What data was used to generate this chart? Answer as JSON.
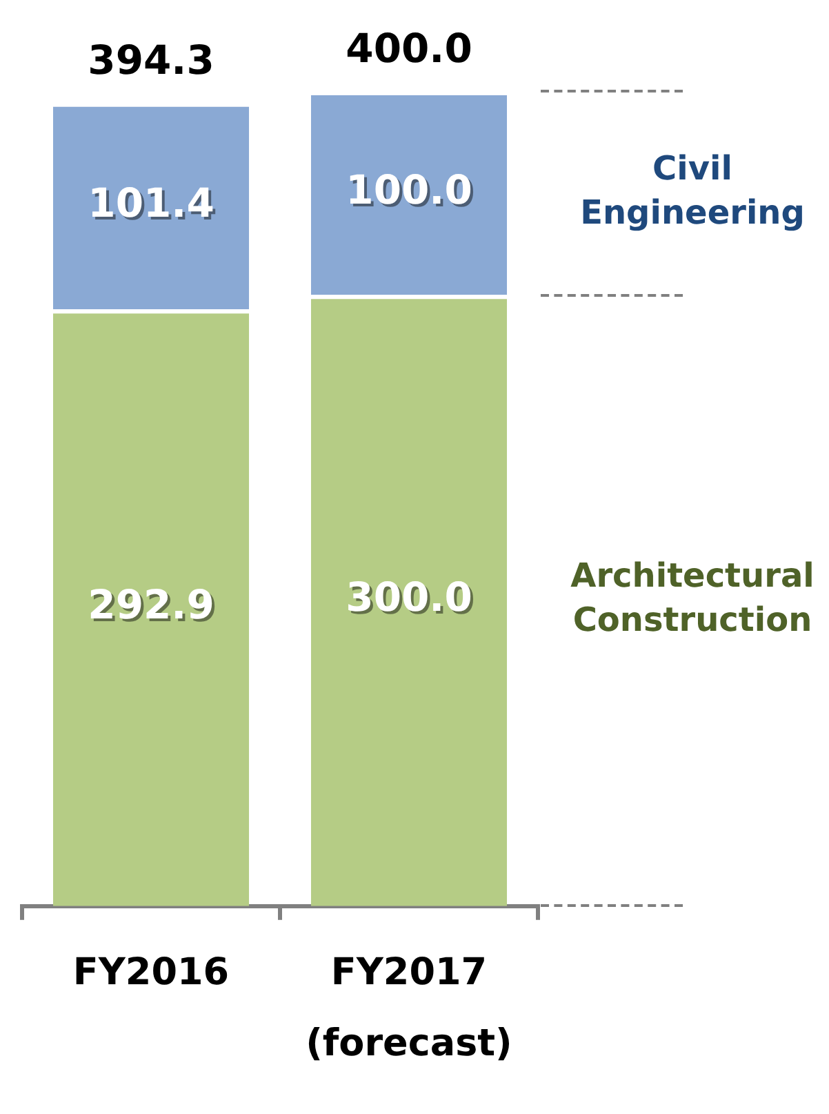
{
  "chart_data": {
    "type": "bar",
    "stacked": true,
    "categories": [
      "FY2016",
      "FY2017 (forecast)"
    ],
    "series": [
      {
        "name": "Architectural Construction",
        "color": "#b5cc85",
        "values": [
          292.9,
          300.0
        ],
        "value_labels": [
          "292.9",
          "300.0"
        ]
      },
      {
        "name": "Civil Engineering",
        "color": "#8aa9d4",
        "values": [
          101.4,
          100.0
        ],
        "value_labels": [
          "101.4",
          "100.0"
        ]
      }
    ],
    "totals": [
      "394.3",
      "400.0"
    ],
    "ylim": [
      0,
      400
    ],
    "tick_labels": "x",
    "grid": false,
    "legend": false
  }
}
